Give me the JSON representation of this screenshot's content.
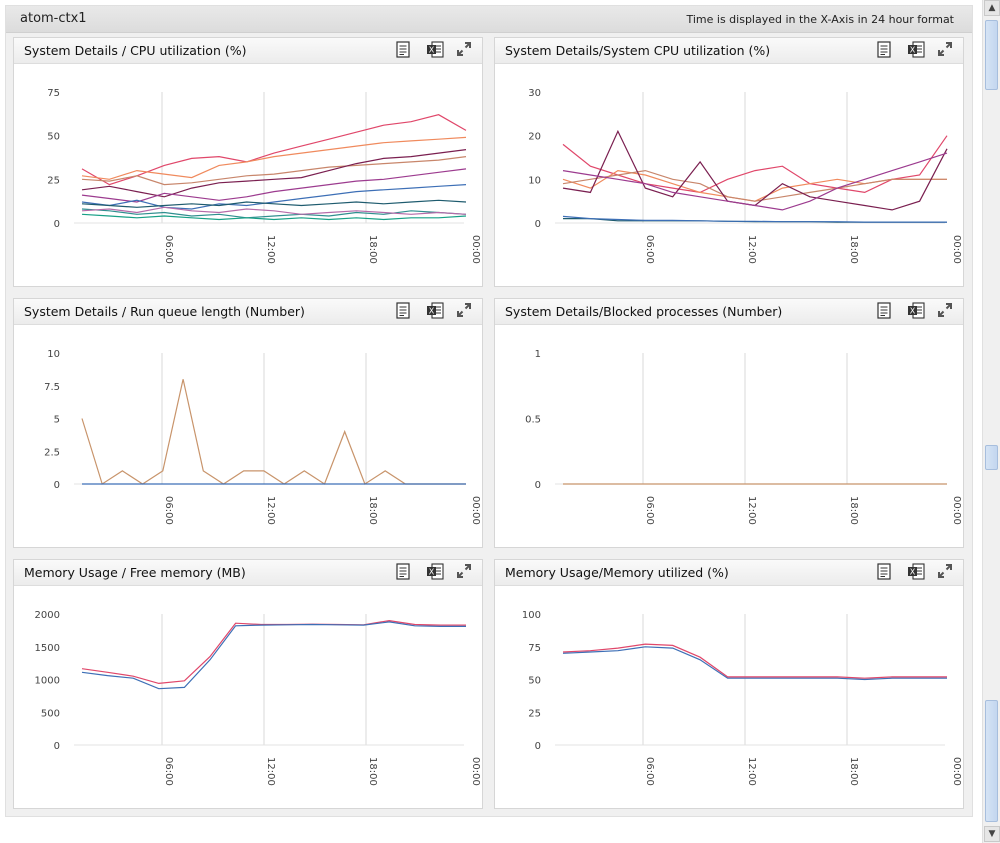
{
  "header": {
    "host": "atom-ctx1",
    "time_note": "Time is displayed in the X-Axis in 24 hour format"
  },
  "icons": [
    "report-icon",
    "excel-icon",
    "expand-icon"
  ],
  "x_ticks": [
    "06:00",
    "12:00",
    "18:00",
    "00:00"
  ],
  "panels": [
    {
      "title": "System Details  / CPU utilization (%)",
      "chart_data": {
        "type": "line",
        "ylim": [
          0,
          75
        ],
        "yticks": [
          "75",
          "50",
          "25",
          "0"
        ],
        "series": [
          {
            "color": "#e0476a",
            "values": [
              31,
              22,
              27,
              33,
              37,
              38,
              35,
              40,
              44,
              48,
              52,
              56,
              58,
              62,
              53
            ]
          },
          {
            "color": "#f08a5d",
            "values": [
              27,
              25,
              30,
              28,
              26,
              33,
              35,
              38,
              40,
              42,
              44,
              46,
              47,
              48,
              49
            ]
          },
          {
            "color": "#c8866b",
            "values": [
              25,
              24,
              27,
              22,
              23,
              25,
              27,
              28,
              30,
              32,
              33,
              34,
              35,
              36,
              38
            ]
          },
          {
            "color": "#7a1f50",
            "values": [
              19,
              21,
              18,
              15,
              20,
              23,
              24,
              25,
              26,
              30,
              34,
              37,
              38,
              40,
              42
            ]
          },
          {
            "color": "#9c3b8f",
            "values": [
              16,
              14,
              12,
              17,
              15,
              13,
              15,
              18,
              20,
              22,
              24,
              25,
              27,
              29,
              31
            ]
          },
          {
            "color": "#3d6fb6",
            "values": [
              12,
              10,
              13,
              9,
              8,
              11,
              10,
              12,
              14,
              16,
              18,
              19,
              20,
              21,
              22
            ]
          },
          {
            "color": "#2f8f8f",
            "values": [
              8,
              7,
              5,
              6,
              4,
              5,
              3,
              4,
              5,
              4,
              6,
              5,
              7,
              6,
              5
            ]
          },
          {
            "color": "#1e5b6e",
            "values": [
              11,
              10,
              9,
              10,
              11,
              10,
              12,
              11,
              10,
              11,
              12,
              11,
              12,
              13,
              12
            ]
          },
          {
            "color": "#17a086",
            "values": [
              5,
              4,
              3,
              4,
              3,
              2,
              3,
              2,
              3,
              2,
              3,
              2,
              3,
              3,
              4
            ]
          },
          {
            "color": "#b56ba9",
            "values": [
              7,
              8,
              6,
              9,
              7,
              6,
              8,
              7,
              5,
              6,
              7,
              6,
              5,
              6,
              5
            ]
          }
        ]
      }
    },
    {
      "title": "System Details/System CPU utilization (%)",
      "chart_data": {
        "type": "line",
        "ylim": [
          0,
          30
        ],
        "yticks": [
          "30",
          "20",
          "10",
          "0"
        ],
        "series": [
          {
            "color": "#e0476a",
            "values": [
              18,
              13,
              11,
              9,
              8,
              7,
              10,
              12,
              13,
              9,
              8,
              7,
              10,
              11,
              20
            ]
          },
          {
            "color": "#f08a5d",
            "values": [
              10,
              8,
              12,
              11,
              9,
              7,
              6,
              5,
              8,
              9,
              10,
              9,
              10,
              10,
              10
            ]
          },
          {
            "color": "#c8866b",
            "values": [
              9,
              10,
              11,
              12,
              10,
              9,
              6,
              5,
              6,
              7,
              8,
              9,
              10,
              10,
              10
            ]
          },
          {
            "color": "#7a1f50",
            "values": [
              8,
              7,
              21,
              8,
              6,
              14,
              5,
              4,
              9,
              6,
              5,
              4,
              3,
              5,
              17
            ]
          },
          {
            "color": "#9c3b8f",
            "values": [
              12,
              11,
              10,
              9,
              7,
              6,
              5,
              4,
              3,
              5,
              8,
              10,
              12,
              14,
              16
            ]
          },
          {
            "color": "#1e5b6e",
            "values": [
              1,
              1,
              0.5,
              0.5,
              0.5,
              0.5,
              0.4,
              0.3,
              0.3,
              0.3,
              0.2,
              0.2,
              0.2,
              0.2,
              0.2
            ]
          },
          {
            "color": "#3d6fb6",
            "values": [
              1.5,
              1,
              0.8,
              0.6,
              0.6,
              0.5,
              0.4,
              0.4,
              0.3,
              0.3,
              0.3,
              0.2,
              0.2,
              0.2,
              0.2
            ]
          }
        ]
      }
    },
    {
      "title": "System Details  / Run queue length (Number)",
      "chart_data": {
        "type": "line",
        "ylim": [
          0,
          10
        ],
        "yticks": [
          "10",
          "7.5",
          "5",
          "2.5",
          "0"
        ],
        "series": [
          {
            "color": "#c8946b",
            "values": [
              5,
              0,
              1,
              0,
              1,
              8,
              1,
              0,
              1,
              1,
              0,
              1,
              0,
              4,
              0,
              1,
              0,
              0,
              0,
              0
            ]
          },
          {
            "color": "#3d6fb6",
            "values": [
              0,
              0,
              0,
              0,
              0,
              0,
              0,
              0,
              0,
              0,
              0,
              0,
              0,
              0,
              0,
              0,
              0,
              0,
              0,
              0
            ]
          }
        ]
      }
    },
    {
      "title": "System Details/Blocked processes (Number)",
      "chart_data": {
        "type": "line",
        "ylim": [
          0,
          1
        ],
        "yticks": [
          "1",
          "0.5",
          "0"
        ],
        "series": [
          {
            "color": "#c8946b",
            "values": [
              0,
              0,
              0,
              0,
              0,
              0,
              0,
              0,
              0,
              0,
              0,
              0,
              0,
              0,
              0
            ]
          }
        ]
      }
    },
    {
      "title": "Memory Usage  / Free memory (MB)",
      "chart_data": {
        "type": "line",
        "ylim": [
          0,
          2000
        ],
        "yticks": [
          "2000",
          "1500",
          "1000",
          "500",
          "0"
        ],
        "series": [
          {
            "color": "#e0476a",
            "values": [
              1165,
              1110,
              1050,
              940,
              980,
              1350,
              1860,
              1840,
              1840,
              1845,
              1840,
              1835,
              1900,
              1840,
              1830,
              1830
            ]
          },
          {
            "color": "#3d6fb6",
            "values": [
              1110,
              1060,
              1020,
              860,
              880,
              1300,
              1820,
              1830,
              1835,
              1840,
              1835,
              1830,
              1880,
              1820,
              1810,
              1810
            ]
          }
        ]
      }
    },
    {
      "title": "Memory Usage/Memory utilized (%)",
      "chart_data": {
        "type": "line",
        "ylim": [
          0,
          100
        ],
        "yticks": [
          "100",
          "75",
          "50",
          "25",
          "0"
        ],
        "series": [
          {
            "color": "#e0476a",
            "values": [
              71,
              72,
              74,
              77,
              76,
              67,
              52,
              52,
              52,
              52,
              52,
              51,
              52,
              52,
              52
            ]
          },
          {
            "color": "#3d6fb6",
            "values": [
              70,
              71,
              72,
              75,
              74,
              65,
              51,
              51,
              51,
              51,
              51,
              50,
              51,
              51,
              51
            ]
          }
        ]
      }
    }
  ]
}
